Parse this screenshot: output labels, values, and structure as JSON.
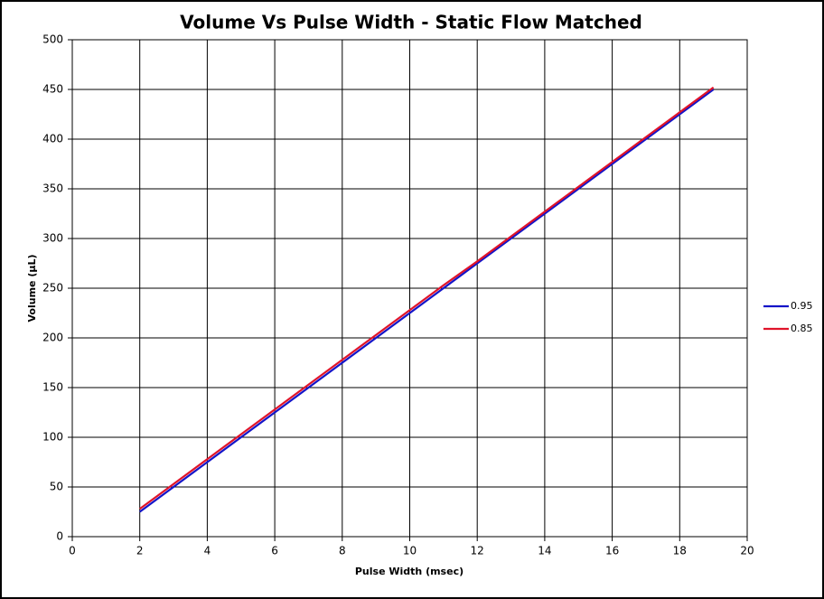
{
  "chart_data": {
    "type": "line",
    "title": "Volume Vs Pulse Width - Static Flow Matched",
    "x_label": "Pulse Width (msec)",
    "y_label": "Volume (µL)",
    "x": [
      2,
      3,
      4,
      5,
      6,
      7,
      8,
      9,
      10,
      11,
      12,
      13,
      14,
      15,
      16,
      17,
      18,
      19
    ],
    "series": [
      {
        "name": "0.95",
        "color": "#1414c8",
        "values": [
          25,
          50,
          75,
          100,
          125,
          150,
          175,
          200,
          225,
          250,
          275,
          300,
          325,
          350,
          375,
          400,
          425,
          450
        ]
      },
      {
        "name": "0.85",
        "color": "#e0142a",
        "values": [
          28,
          53,
          78,
          103,
          128,
          153,
          178,
          203,
          228,
          253,
          277,
          302,
          327,
          352,
          377,
          402,
          427,
          452
        ]
      }
    ],
    "xlim": [
      0,
      20
    ],
    "xticks": [
      0,
      2,
      4,
      6,
      8,
      10,
      12,
      14,
      16,
      18,
      20
    ],
    "ylim": [
      0,
      500
    ],
    "yticks": [
      0,
      50,
      100,
      150,
      200,
      250,
      300,
      350,
      400,
      450,
      500
    ],
    "grid": true,
    "legend": "right"
  }
}
